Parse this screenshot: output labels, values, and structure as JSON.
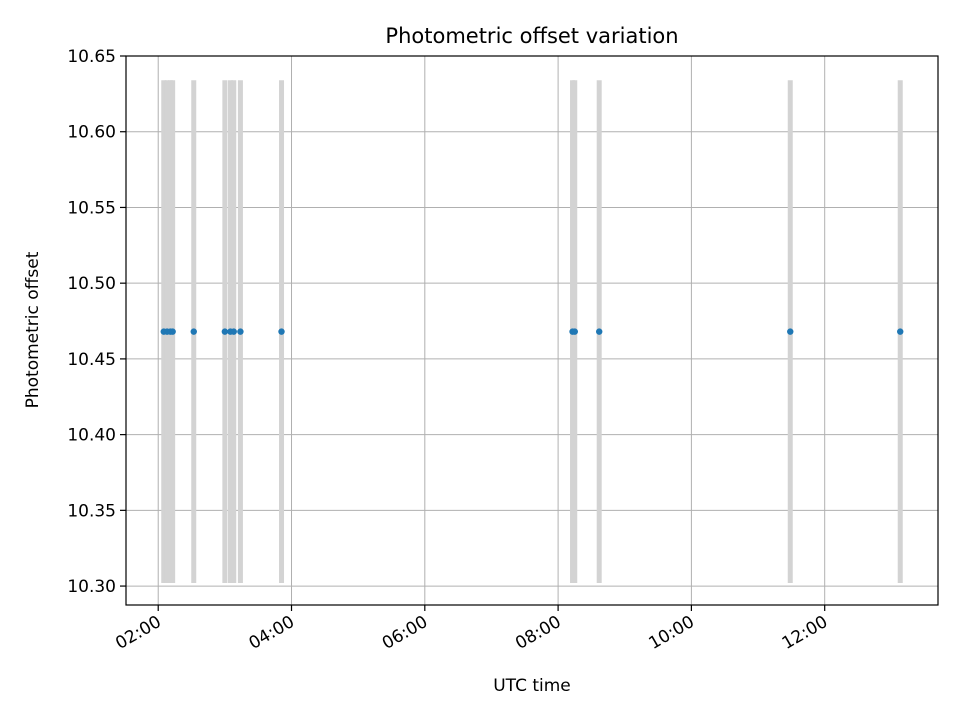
{
  "chart_data": {
    "type": "scatter",
    "title": "Photometric offset variation",
    "xlabel": "UTC time",
    "ylabel": "Photometric offset",
    "x_unit": "time",
    "xlim": [
      "01:31",
      "13:42"
    ],
    "ylim": [
      10.2875,
      10.65
    ],
    "x_ticks": [
      "02:00",
      "04:00",
      "06:00",
      "08:00",
      "10:00",
      "12:00"
    ],
    "y_ticks": [
      "10.30",
      "10.35",
      "10.40",
      "10.45",
      "10.50",
      "10.55",
      "10.60",
      "10.65"
    ],
    "grid": true,
    "colors": {
      "points": "#1f77b4",
      "error_bars": "#d3d3d3",
      "grid": "#b0b0b0"
    },
    "series": [
      {
        "points": [
          {
            "x": "02:05",
            "y": 10.468,
            "y_low": 10.302,
            "y_high": 10.634
          },
          {
            "x": "02:08",
            "y": 10.468,
            "y_low": 10.302,
            "y_high": 10.634
          },
          {
            "x": "02:11",
            "y": 10.468,
            "y_low": 10.302,
            "y_high": 10.634
          },
          {
            "x": "02:13",
            "y": 10.468,
            "y_low": 10.302,
            "y_high": 10.634
          },
          {
            "x": "02:32",
            "y": 10.468,
            "y_low": 10.302,
            "y_high": 10.634
          },
          {
            "x": "03:00",
            "y": 10.468,
            "y_low": 10.302,
            "y_high": 10.634
          },
          {
            "x": "03:05",
            "y": 10.468,
            "y_low": 10.302,
            "y_high": 10.634
          },
          {
            "x": "03:08",
            "y": 10.468,
            "y_low": 10.302,
            "y_high": 10.634
          },
          {
            "x": "03:14",
            "y": 10.468,
            "y_low": 10.302,
            "y_high": 10.634
          },
          {
            "x": "03:51",
            "y": 10.468,
            "y_low": 10.302,
            "y_high": 10.634
          },
          {
            "x": "08:13",
            "y": 10.468,
            "y_low": 10.302,
            "y_high": 10.634
          },
          {
            "x": "08:15",
            "y": 10.468,
            "y_low": 10.302,
            "y_high": 10.634
          },
          {
            "x": "08:37",
            "y": 10.468,
            "y_low": 10.302,
            "y_high": 10.634
          },
          {
            "x": "11:29",
            "y": 10.468,
            "y_low": 10.302,
            "y_high": 10.634
          },
          {
            "x": "13:08",
            "y": 10.468,
            "y_low": 10.302,
            "y_high": 10.634
          }
        ]
      }
    ]
  }
}
